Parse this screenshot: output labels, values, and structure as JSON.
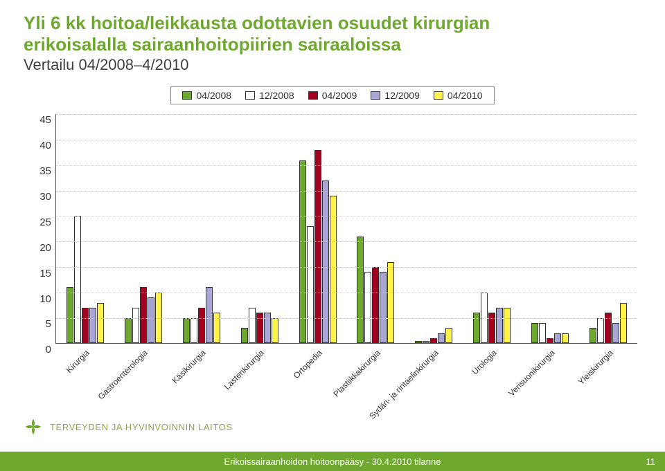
{
  "title_lines": [
    "Yli 6 kk hoitoa/leikkausta odottavien osuudet kirurgian",
    "erikoisalalla sairaanhoitopiirien sairaaloissa"
  ],
  "subtitle": "Vertailu 04/2008–4/2010",
  "chart": {
    "type": "bar",
    "ylim": [
      0,
      45
    ],
    "ytick_step": 5,
    "grid_color": "#c8c8c8",
    "axis_color": "#555555",
    "background_color": "#ffffff",
    "bar_border_color": "#333333",
    "tick_fontsize": 15,
    "xlabel_fontsize": 12,
    "legend_fontsize": 14,
    "series": [
      {
        "label": "04/2008",
        "color": "#6ea82e"
      },
      {
        "label": "12/2008",
        "color": "#ffffff"
      },
      {
        "label": "04/2009",
        "color": "#a30021"
      },
      {
        "label": "12/2009",
        "color": "#a9a6d6"
      },
      {
        "label": "04/2010",
        "color": "#fff34a"
      }
    ],
    "categories": [
      "Kirurgia",
      "Gastroenterologia",
      "Käsikirurgia",
      "Lastenkirurgia",
      "Ortopedia",
      "Plastiikkakirurgia",
      "Sydän- ja rintaelinkirurgia",
      "Urologia",
      "Verisuonikirurgia",
      "Yleiskirurgia"
    ],
    "values": [
      [
        11,
        25,
        7,
        7,
        8
      ],
      [
        5,
        7,
        11,
        9,
        10
      ],
      [
        5,
        5,
        7,
        11,
        6
      ],
      [
        3,
        7,
        6,
        6,
        5
      ],
      [
        36,
        23,
        38,
        32,
        29
      ],
      [
        21,
        14,
        15,
        14,
        16
      ],
      [
        0.5,
        0.5,
        1,
        2,
        3
      ],
      [
        6,
        10,
        6,
        7,
        7
      ],
      [
        4,
        4,
        1,
        2,
        2
      ],
      [
        3,
        5,
        6,
        4,
        8
      ]
    ]
  },
  "org_label": "TERVEYDEN JA HYVINVOINNIN LAITOS",
  "footer_text": "Erikoissairaanhoidon hoitoonpääsy - 30.4.2010 tilanne",
  "page_number": "11",
  "colors": {
    "title": "#6ea82e",
    "subtitle": "#404040",
    "footer_bg": "#6ea82e",
    "footer_text": "#ffffff",
    "org_text": "#8aa64a"
  }
}
